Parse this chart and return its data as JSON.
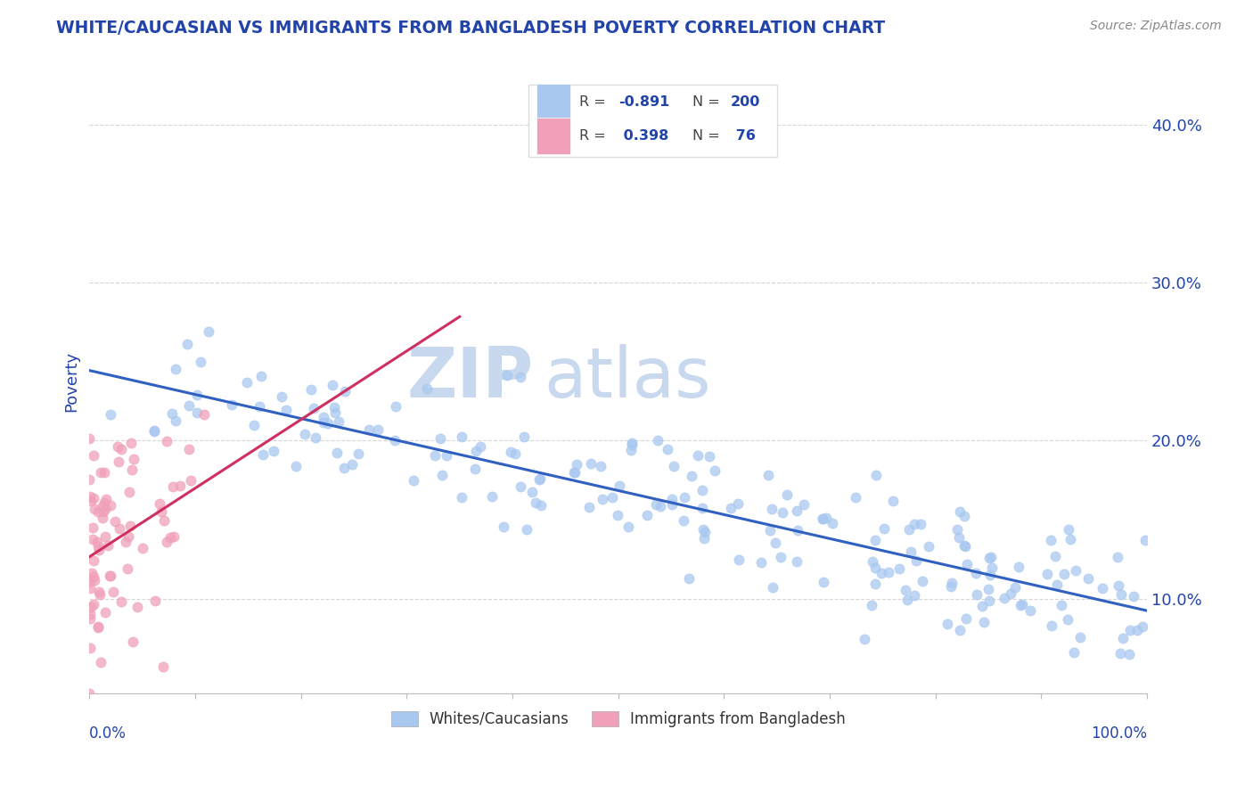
{
  "title": "WHITE/CAUCASIAN VS IMMIGRANTS FROM BANGLADESH POVERTY CORRELATION CHART",
  "source": "Source: ZipAtlas.com",
  "ylabel": "Poverty",
  "y_ticks": [
    0.1,
    0.2,
    0.3,
    0.4
  ],
  "y_tick_labels": [
    "10.0%",
    "20.0%",
    "30.0%",
    "40.0%"
  ],
  "xlim": [
    0.0,
    1.0
  ],
  "ylim": [
    0.04,
    0.435
  ],
  "legend_blue_r": "-0.891",
  "legend_blue_n": "200",
  "legend_pink_r": "0.398",
  "legend_pink_n": "76",
  "legend_label_blue": "Whites/Caucasians",
  "legend_label_pink": "Immigrants from Bangladesh",
  "blue_color": "#a8c8f0",
  "pink_color": "#f0a0b8",
  "blue_line_color": "#3060c0",
  "pink_line_color": "#d03060",
  "watermark_zip": "ZIP",
  "watermark_atlas": "atlas",
  "title_color": "#2244aa",
  "axis_label_color": "#2244aa",
  "tick_label_color": "#2244aa",
  "legend_text_color": "#2244aa",
  "background_color": "#ffffff",
  "grid_color": "#cccccc",
  "source_color": "#888888"
}
